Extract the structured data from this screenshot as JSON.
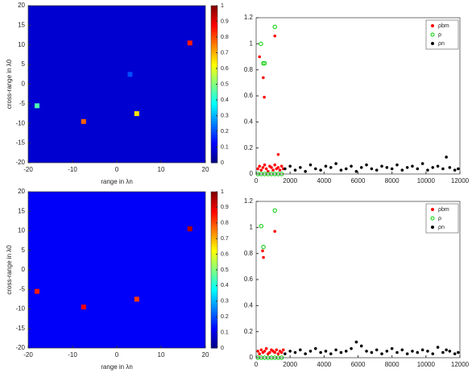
{
  "chart_data": [
    {
      "type": "heatmap",
      "xlabel": "range in λn",
      "ylabel": "cross-range in λ0",
      "xlim": [
        -20,
        20
      ],
      "ylim": [
        -20,
        20
      ],
      "xticks": [
        -20,
        -10,
        0,
        10,
        20
      ],
      "yticks": [
        -20,
        -15,
        -10,
        -5,
        0,
        5,
        10,
        15,
        20
      ],
      "clim": [
        0,
        1
      ],
      "cticks": [
        0,
        0.1,
        0.2,
        0.3,
        0.4,
        0.5,
        0.6,
        0.7,
        0.8,
        0.9,
        1
      ],
      "background": 0.08,
      "spots": [
        {
          "x": -18,
          "y": -5.5,
          "value": 0.45
        },
        {
          "x": -7.5,
          "y": -9.5,
          "value": 0.78
        },
        {
          "x": 4.5,
          "y": -7.5,
          "value": 0.65
        },
        {
          "x": 16.5,
          "y": 10.5,
          "value": 0.85
        },
        {
          "x": 3,
          "y": 2.5,
          "value": 0.2
        }
      ]
    },
    {
      "type": "scatter",
      "xlim": [
        0,
        12000
      ],
      "ylim": [
        0,
        1.2
      ],
      "xticks": [
        0,
        2000,
        4000,
        6000,
        8000,
        10000,
        12000
      ],
      "yticks": [
        0,
        0.2,
        0.4,
        0.6,
        0.8,
        1,
        1.2
      ],
      "series": [
        {
          "name": "ρbm",
          "color": "#ff0000",
          "marker": "filled",
          "x": [
            100,
            200,
            300,
            400,
            500,
            600,
            700,
            800,
            900,
            1000,
            1100,
            1200,
            1300,
            1400,
            1500,
            1600,
            200,
            420,
            480,
            1100,
            1300
          ],
          "values": [
            0.04,
            0.06,
            0.03,
            0.05,
            0.07,
            0.04,
            0.02,
            0.06,
            0.05,
            0.03,
            0.07,
            0.04,
            0.05,
            0.03,
            0.06,
            0.04,
            0.9,
            0.74,
            0.59,
            1.06,
            0.15
          ]
        },
        {
          "name": "ρ",
          "color": "#00cc00",
          "marker": "open",
          "x": [
            100,
            300,
            500,
            700,
            900,
            1100,
            1300,
            1500,
            280,
            420,
            500,
            1100
          ],
          "values": [
            0,
            0,
            0,
            0,
            0,
            0,
            0,
            0,
            1.0,
            0.85,
            0.85,
            1.13
          ]
        },
        {
          "name": "ρn",
          "color": "#000000",
          "marker": "filled",
          "x": [
            1700,
            2000,
            2300,
            2600,
            2900,
            3200,
            3500,
            3800,
            4100,
            4400,
            4700,
            5000,
            5300,
            5600,
            5900,
            6200,
            6500,
            6800,
            7100,
            7400,
            7700,
            8000,
            8300,
            8600,
            8900,
            9200,
            9500,
            9800,
            10100,
            10400,
            10700,
            11000,
            11200,
            11400,
            11700,
            11900
          ],
          "values": [
            0.04,
            0.06,
            0.03,
            0.05,
            0.02,
            0.07,
            0.04,
            0.03,
            0.06,
            0.05,
            0.08,
            0.03,
            0.04,
            0.06,
            0.02,
            0.05,
            0.07,
            0.04,
            0.03,
            0.06,
            0.05,
            0.04,
            0.07,
            0.03,
            0.05,
            0.06,
            0.04,
            0.08,
            0.03,
            0.05,
            0.06,
            0.04,
            0.13,
            0.05,
            0.03,
            0.04
          ]
        }
      ]
    },
    {
      "type": "heatmap",
      "xlabel": "range in λn",
      "ylabel": "cross-range in λ0",
      "xlim": [
        -20,
        20
      ],
      "ylim": [
        -20,
        20
      ],
      "xticks": [
        -20,
        -10,
        0,
        10,
        20
      ],
      "yticks": [
        -20,
        -15,
        -10,
        -5,
        0,
        5,
        10,
        15,
        20
      ],
      "clim": [
        0,
        1
      ],
      "cticks": [
        0,
        0.1,
        0.2,
        0.3,
        0.4,
        0.5,
        0.6,
        0.7,
        0.8,
        0.9,
        1
      ],
      "background": 0.12,
      "spots": [
        {
          "x": -18,
          "y": -5.5,
          "value": 0.85
        },
        {
          "x": -7.5,
          "y": -9.5,
          "value": 0.88
        },
        {
          "x": 4.5,
          "y": -7.5,
          "value": 0.82
        },
        {
          "x": 16.5,
          "y": 10.5,
          "value": 0.95
        }
      ]
    },
    {
      "type": "scatter",
      "xlim": [
        0,
        12000
      ],
      "ylim": [
        0,
        1.2
      ],
      "xticks": [
        0,
        2000,
        4000,
        6000,
        8000,
        10000,
        12000
      ],
      "yticks": [
        0,
        0.2,
        0.4,
        0.6,
        0.8,
        1,
        1.2
      ],
      "series": [
        {
          "name": "ρbm",
          "color": "#ff0000",
          "marker": "filled",
          "x": [
            100,
            200,
            300,
            400,
            500,
            600,
            700,
            800,
            900,
            1000,
            1100,
            1200,
            1300,
            1400,
            1500,
            1600,
            380,
            430,
            1100
          ],
          "values": [
            0.05,
            0.03,
            0.06,
            0.04,
            0.05,
            0.07,
            0.03,
            0.04,
            0.06,
            0.05,
            0.04,
            0.06,
            0.03,
            0.05,
            0.04,
            0.06,
            0.82,
            0.77,
            0.97
          ]
        },
        {
          "name": "ρ",
          "color": "#00cc00",
          "marker": "open",
          "x": [
            100,
            300,
            500,
            700,
            900,
            1100,
            1300,
            1500,
            300,
            430,
            1100
          ],
          "values": [
            0,
            0,
            0,
            0,
            0,
            0,
            0,
            0,
            1.01,
            0.85,
            1.13
          ]
        },
        {
          "name": "ρn",
          "color": "#000000",
          "marker": "filled",
          "x": [
            1700,
            2000,
            2300,
            2600,
            2900,
            3200,
            3500,
            3800,
            4100,
            4400,
            4700,
            5000,
            5300,
            5600,
            5900,
            6200,
            6500,
            6800,
            7100,
            7400,
            7700,
            8000,
            8300,
            8600,
            8900,
            9200,
            9500,
            9800,
            10100,
            10400,
            10700,
            11000,
            11200,
            11400,
            11700,
            11900
          ],
          "values": [
            0.03,
            0.05,
            0.04,
            0.06,
            0.03,
            0.05,
            0.07,
            0.04,
            0.05,
            0.03,
            0.06,
            0.04,
            0.05,
            0.07,
            0.12,
            0.09,
            0.05,
            0.04,
            0.06,
            0.03,
            0.05,
            0.07,
            0.04,
            0.06,
            0.03,
            0.05,
            0.04,
            0.06,
            0.05,
            0.03,
            0.08,
            0.04,
            0.06,
            0.05,
            0.03,
            0.04
          ]
        }
      ]
    }
  ]
}
